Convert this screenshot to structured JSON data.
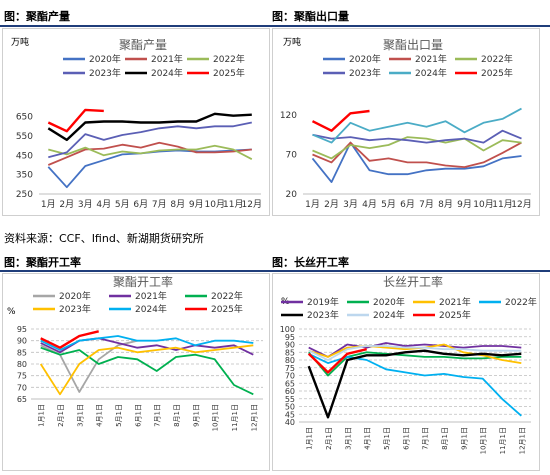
{
  "header_left_top": "图：聚酯产量",
  "header_right_top": "图：聚酯出口量",
  "header_left_bottom": "图：聚酯开工率",
  "header_right_bottom": "图：长丝开工率",
  "source": "资料来源：CCF、Ifind、新湖期货研究所",
  "colors": {
    "2019": "#7030a0",
    "2020": "#a6a6a6",
    "2021": "#7030a0",
    "2022": "#92d050",
    "2023": "#5b5fb5",
    "2024": "#000000",
    "2025": "#ff0000"
  },
  "chart_data": [
    {
      "type": "line",
      "title": "聚酯产量",
      "ylabel": "万吨",
      "categories": [
        "1月",
        "2月",
        "3月",
        "4月",
        "5月",
        "6月",
        "7月",
        "8月",
        "9月",
        "10月",
        "11月",
        "12月"
      ],
      "ylim": [
        250,
        700
      ],
      "yticks": [
        250,
        350,
        450,
        550,
        650
      ],
      "series": [
        {
          "name": "2020年",
          "color": "#4472c4",
          "values": [
            390,
            285,
            395,
            425,
            455,
            460,
            470,
            475,
            470,
            470,
            475,
            480
          ]
        },
        {
          "name": "2021年",
          "color": "#c0504d",
          "values": [
            400,
            440,
            480,
            485,
            505,
            490,
            515,
            495,
            465,
            465,
            470,
            480
          ]
        },
        {
          "name": "2022年",
          "color": "#9bbb59",
          "values": [
            480,
            455,
            490,
            450,
            470,
            460,
            475,
            480,
            480,
            500,
            480,
            430
          ]
        },
        {
          "name": "2023年",
          "color": "#5b5fb5",
          "values": [
            440,
            465,
            560,
            530,
            555,
            570,
            590,
            600,
            590,
            600,
            600,
            620
          ]
        },
        {
          "name": "2024年",
          "color": "#000000",
          "values": [
            590,
            530,
            620,
            625,
            625,
            620,
            620,
            625,
            625,
            665,
            655,
            660
          ]
        },
        {
          "name": "2025年",
          "color": "#ff0000",
          "values": [
            620,
            575,
            685,
            680,
            null,
            null,
            null,
            null,
            null,
            null,
            null,
            null
          ]
        }
      ]
    },
    {
      "type": "line",
      "title": "聚酯出口量",
      "ylabel": "万吨",
      "categories": [
        "1月",
        "2月",
        "3月",
        "4月",
        "5月",
        "6月",
        "7月",
        "8月",
        "9月",
        "10月",
        "11月",
        "12月"
      ],
      "ylim": [
        20,
        130
      ],
      "yticks": [
        20,
        70,
        120
      ],
      "series": [
        {
          "name": "2020年",
          "color": "#4472c4",
          "values": [
            65,
            35,
            85,
            50,
            45,
            45,
            50,
            52,
            52,
            55,
            65,
            68
          ]
        },
        {
          "name": "2021年",
          "color": "#c0504d",
          "values": [
            70,
            60,
            85,
            62,
            65,
            60,
            60,
            56,
            54,
            60,
            72,
            85
          ]
        },
        {
          "name": "2022年",
          "color": "#9bbb59",
          "values": [
            75,
            65,
            82,
            78,
            82,
            92,
            90,
            85,
            90,
            75,
            88,
            85
          ]
        },
        {
          "name": "2023年",
          "color": "#5b5fb5",
          "values": [
            95,
            90,
            92,
            88,
            90,
            88,
            85,
            88,
            90,
            85,
            100,
            90
          ]
        },
        {
          "name": "2024年",
          "color": "#4bacc6",
          "values": [
            95,
            85,
            110,
            100,
            105,
            110,
            105,
            112,
            98,
            110,
            115,
            128
          ]
        },
        {
          "name": "2025年",
          "color": "#ff0000",
          "values": [
            112,
            100,
            122,
            125,
            null,
            null,
            null,
            null,
            null,
            null,
            null,
            null
          ]
        }
      ]
    },
    {
      "type": "line",
      "title": "聚酯开工率",
      "categories": [
        "1月1日",
        "2月1日",
        "3月1日",
        "4月1日",
        "5月1日",
        "6月1日",
        "7月1日",
        "8月1日",
        "9月1日",
        "10月1日",
        "11月1日",
        "12月1日"
      ],
      "ylim": [
        65,
        95
      ],
      "yticks": [
        65,
        70,
        75,
        80,
        85,
        90,
        95
      ],
      "series": [
        {
          "name": "2020年",
          "color": "#a6a6a6",
          "values": [
            88,
            84,
            68,
            82,
            88,
            90,
            null,
            null,
            null,
            null,
            null,
            null
          ]
        },
        {
          "name": "2021年",
          "color": "#7030a0",
          "values": [
            89,
            85,
            90,
            91,
            89,
            87,
            88,
            86,
            88,
            87,
            88,
            84
          ]
        },
        {
          "name": "2022年",
          "color": "#00b050",
          "values": [
            87,
            84,
            86,
            80,
            83,
            82,
            77,
            83,
            84,
            82,
            71,
            67
          ]
        },
        {
          "name": "2023年",
          "color": "#ffc000",
          "values": [
            80,
            67,
            80,
            86,
            87,
            85,
            86,
            87,
            85,
            86,
            87,
            88
          ]
        },
        {
          "name": "2024年",
          "color": "#00b0f0",
          "values": [
            90,
            86,
            90,
            91,
            92,
            90,
            90,
            91,
            88,
            90,
            90,
            89
          ]
        },
        {
          "name": "2025年",
          "color": "#ff0000",
          "values": [
            91,
            87,
            92,
            94,
            null,
            null,
            null,
            null,
            null,
            null,
            null,
            null
          ]
        }
      ]
    },
    {
      "type": "line",
      "title": "长丝开工率",
      "categories": [
        "1月1日",
        "2月1日",
        "3月1日",
        "4月1日",
        "5月1日",
        "6月1日",
        "7月1日",
        "8月1日",
        "9月1日",
        "10月1日",
        "11月1日",
        "12月1日"
      ],
      "ylim": [
        40,
        100
      ],
      "yticks": [
        40,
        45,
        50,
        55,
        60,
        65,
        70,
        75,
        80,
        85,
        90,
        95,
        100
      ],
      "series": [
        {
          "name": "2019年",
          "color": "#7030a0",
          "values": [
            88,
            82,
            90,
            88,
            91,
            89,
            90,
            89,
            88,
            89,
            89,
            88
          ]
        },
        {
          "name": "2020年",
          "color": "#00b050",
          "values": [
            85,
            70,
            82,
            85,
            84,
            83,
            82,
            82,
            81,
            81,
            82,
            82
          ]
        },
        {
          "name": "2021年",
          "color": "#ffc000",
          "values": [
            86,
            82,
            88,
            89,
            88,
            87,
            88,
            90,
            85,
            83,
            80,
            78
          ]
        },
        {
          "name": "2022年",
          "color": "#00b0f0",
          "values": [
            84,
            78,
            82,
            80,
            74,
            72,
            70,
            71,
            69,
            68,
            55,
            44
          ]
        },
        {
          "name": "2023年",
          "color": "#000000",
          "values": [
            76,
            43,
            80,
            83,
            83,
            85,
            86,
            84,
            83,
            84,
            83,
            84
          ]
        },
        {
          "name": "2024年",
          "color": "#bdd7ee",
          "values": [
            86,
            80,
            87,
            89,
            89,
            88,
            88,
            87,
            87,
            86,
            86,
            86
          ]
        },
        {
          "name": "2025年",
          "color": "#ff0000",
          "values": [
            84,
            72,
            84,
            87,
            null,
            null,
            null,
            null,
            null,
            null,
            null,
            null
          ]
        }
      ]
    }
  ]
}
